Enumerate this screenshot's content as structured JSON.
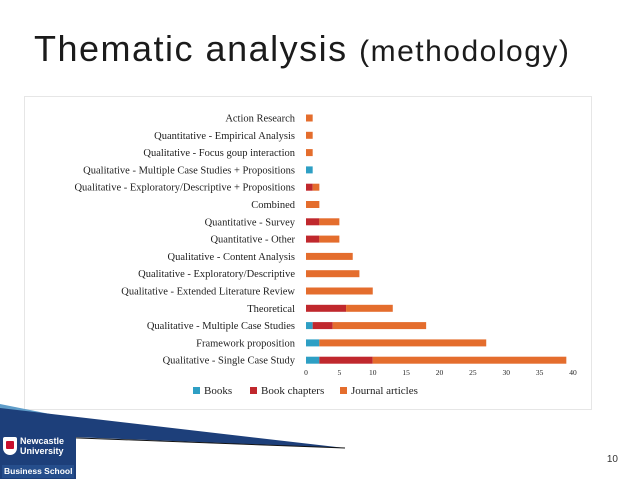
{
  "slide": {
    "title_main": "Thematic analysis ",
    "title_paren": "(methodology)",
    "page_number": "10"
  },
  "logo": {
    "line1": "Newcastle",
    "line2": "University",
    "line3": "Business School"
  },
  "colors": {
    "books": "#2e9fc4",
    "book_chapters": "#c0282d",
    "journal_articles": "#e46d2d",
    "deco_blue": "#1d3f7a",
    "deco_light": "#5f9dc9"
  },
  "chart_data": {
    "type": "bar",
    "orientation": "horizontal",
    "stacked": true,
    "categories": [
      "Action Research",
      "Quantitative - Empirical Analysis",
      "Qualitative - Focus goup interaction",
      "Qualitative - Multiple Case Studies + Propositions",
      "Qualitative - Exploratory/Descriptive + Propositions",
      "Combined",
      "Quantitative - Survey",
      "Quantitative - Other",
      "Qualitative - Content Analysis",
      "Qualitative - Exploratory/Descriptive",
      "Qualitative - Extended Literature Review",
      "Theoretical",
      "Qualitative - Multiple Case Studies",
      "Framework proposition",
      "Qualitative - Single Case Study"
    ],
    "series": [
      {
        "name": "Books",
        "values": [
          0,
          0,
          0,
          1,
          0,
          0,
          0,
          0,
          0,
          0,
          0,
          0,
          1,
          2,
          2
        ]
      },
      {
        "name": "Book chapters",
        "values": [
          0,
          0,
          0,
          0,
          1,
          0,
          2,
          2,
          0,
          0,
          0,
          6,
          3,
          0,
          8
        ]
      },
      {
        "name": "Journal articles",
        "values": [
          1,
          1,
          1,
          0,
          1,
          2,
          3,
          3,
          7,
          8,
          10,
          7,
          14,
          25,
          29
        ]
      }
    ],
    "xlim": [
      0,
      40
    ],
    "x_ticks": [
      "0",
      "5",
      "10",
      "15",
      "20",
      "25",
      "30",
      "35",
      "40"
    ],
    "grid": false,
    "legend": "bottom"
  }
}
